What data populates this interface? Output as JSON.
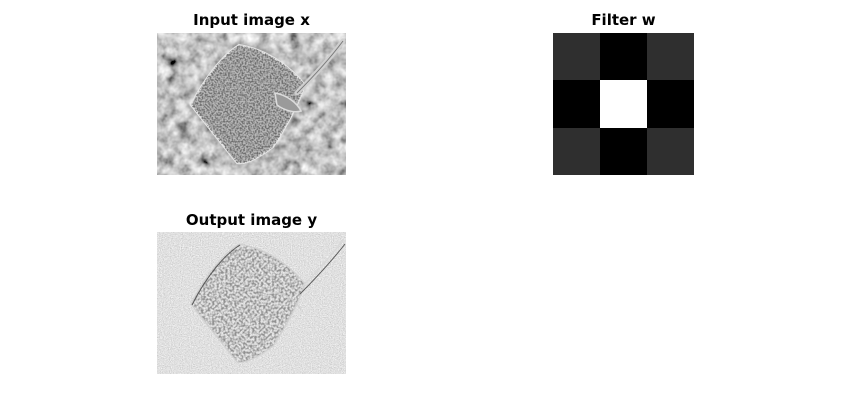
{
  "panels": {
    "input": {
      "title": "Input image x"
    },
    "filter": {
      "title": "Filter w",
      "kernel_shades": [
        [
          "#2f2f2f",
          "#000000",
          "#2f2f2f"
        ],
        [
          "#000000",
          "#ffffff",
          "#000000"
        ],
        [
          "#2f2f2f",
          "#000000",
          "#2f2f2f"
        ]
      ]
    },
    "output": {
      "title": "Output image y"
    }
  },
  "colors": {
    "background": "#ffffff",
    "input_image_base": "#5a5a5a",
    "output_image_base": "#8e8e8e"
  }
}
